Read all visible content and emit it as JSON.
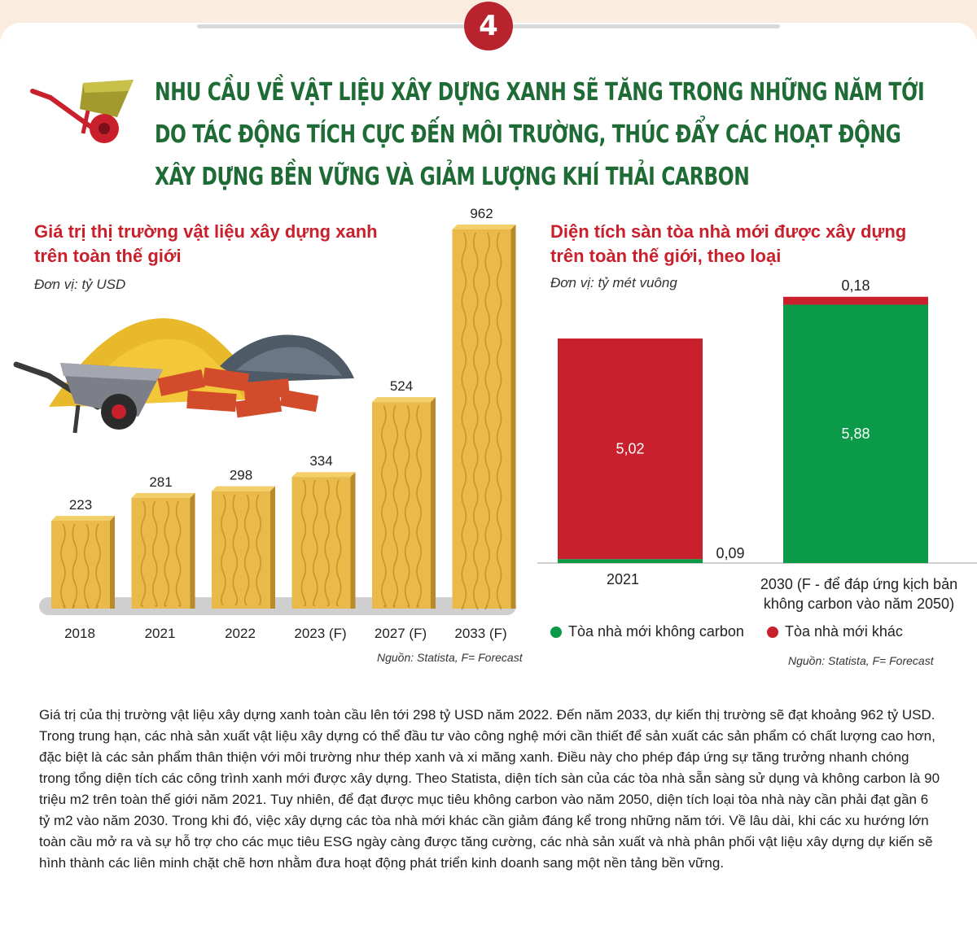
{
  "badge": "4",
  "headline": {
    "line1": "NHU CẦU VỀ VẬT LIỆU XÂY DỰNG XANH SẼ TĂNG TRONG NHỮNG NĂM TỚI",
    "line2": "DO TÁC ĐỘNG TÍCH CỰC ĐẾN MÔI TRƯỜNG, THÚC ĐẨY CÁC HOẠT ĐỘNG",
    "line3": "XÂY DỰNG BỀN VỮNG VÀ GIẢM LƯỢNG KHÍ THẢI CARBON"
  },
  "left_chart": {
    "title_line1": "Giá trị thị trường vật liệu xây dựng xanh",
    "title_line2": "trên toàn thế giới",
    "unit": "Đơn vị: tỷ USD",
    "source": "Nguồn: Statista, F= Forecast"
  },
  "right_chart": {
    "title_line1": "Diện tích sàn tòa nhà mới được xây dựng",
    "title_line2": "trên toàn thế giới, theo loại",
    "unit": "Đơn vị: tỷ mét vuông",
    "source": "Nguồn: Statista, F= Forecast",
    "category_2030_line1": "2030 (F - để đáp ứng kịch bản",
    "category_2030_line2": "không carbon vào năm 2050)",
    "legend": {
      "green_label": "Tòa nhà mới không carbon",
      "red_label": "Tòa nhà mới khác"
    }
  },
  "chart_data": [
    {
      "type": "bar",
      "title": "Giá trị thị trường vật liệu xây dựng xanh trên toàn thế giới",
      "unit": "Đơn vị: tỷ USD",
      "categories": [
        "2018",
        "2021",
        "2022",
        "2023 (F)",
        "2027 (F)",
        "2033 (F)"
      ],
      "values": [
        223,
        281,
        298,
        334,
        524,
        962
      ],
      "value_labels": [
        "223",
        "281",
        "298",
        "334",
        "524",
        "962"
      ],
      "ylim": [
        0,
        962
      ]
    },
    {
      "type": "bar",
      "stacked": true,
      "title": "Diện tích sàn tòa nhà mới được xây dựng trên toàn thế giới, theo loại",
      "unit": "Đơn vị: tỷ mét vuông",
      "categories": [
        "2021",
        "2030 (F - để đáp ứng kịch bản không carbon vào năm 2050)"
      ],
      "series": [
        {
          "name": "Tòa nhà mới không carbon",
          "color": "#0a9a48",
          "values": [
            0.09,
            5.88
          ],
          "labels": [
            "0,09",
            "5,88"
          ]
        },
        {
          "name": "Tòa nhà mới khác",
          "color": "#c8202c",
          "values": [
            5.02,
            0.18
          ],
          "labels": [
            "5,02",
            "0,18"
          ]
        }
      ],
      "legend_position": "bottom"
    }
  ],
  "paragraphs": [
    "Giá trị của thị trường vật liệu xây dựng xanh toàn cầu lên tới 298 tỷ USD năm 2022. Đến năm 2033, dự kiến thị trường sẽ đạt khoảng 962 tỷ USD.",
    "Trong trung hạn, các nhà sản xuất vật liệu xây dựng có thể đầu tư vào công nghệ mới cần thiết để sản xuất các sản phẩm có chất lượng cao hơn, đặc biệt là các sản phẩm thân thiện với môi trường như thép xanh và xi măng xanh. Điều này cho phép đáp ứng sự tăng trưởng nhanh chóng trong tổng diện tích các công trình xanh mới được xây dựng. Theo Statista, diện tích sàn của các tòa nhà sẵn sàng sử dụng và không carbon là 90 triệu m2 trên toàn thế giới năm 2021. Tuy nhiên, để đạt được mục tiêu không carbon vào năm 2050, diện tích loại tòa nhà này cần phải đạt gần 6 tỷ m2 vào năm 2030. Trong khi đó, việc xây dựng các tòa nhà mới khác cần giảm đáng kể trong những năm tới. Về lâu dài, khi các xu hướng lớn toàn cầu mở ra và sự hỗ trợ cho các mục tiêu ESG ngày càng được tăng cường, các nhà sản xuất và nhà phân phối vật liệu xây dựng dự kiến sẽ hình thành các liên minh chặt chẽ hơn nhằm đưa hoạt động phát triển kinh doanh sang một nền tảng bền vững."
  ]
}
